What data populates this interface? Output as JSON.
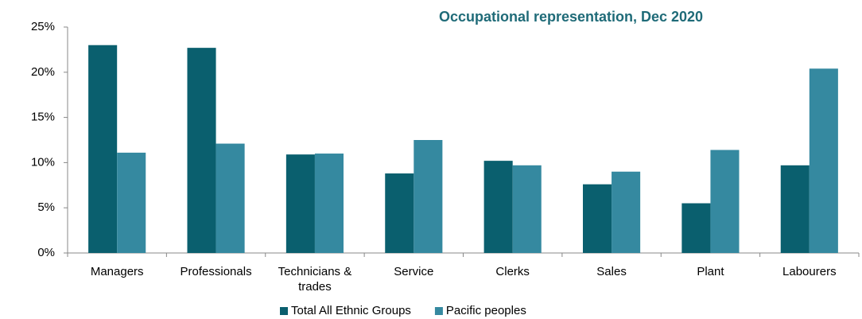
{
  "chart_data": {
    "type": "bar",
    "title": "Occupational representation, Dec 2020",
    "categories": [
      "Managers",
      "Professionals",
      "Technicians & trades",
      "Service",
      "Clerks",
      "Sales",
      "Plant",
      "Labourers"
    ],
    "series": [
      {
        "name": "Total All Ethnic Groups",
        "color": "#0a5f6e",
        "values": [
          23.0,
          22.7,
          10.9,
          8.8,
          10.2,
          7.6,
          5.5,
          9.7
        ]
      },
      {
        "name": "Pacific peoples",
        "color": "#3589a0",
        "values": [
          11.1,
          12.1,
          11.0,
          12.5,
          9.7,
          9.0,
          11.4,
          20.4
        ]
      }
    ],
    "ylim": [
      0,
      25
    ],
    "yticks": [
      {
        "value": 0,
        "label": "0%"
      },
      {
        "value": 5,
        "label": "5%"
      },
      {
        "value": 10,
        "label": "10%"
      },
      {
        "value": 15,
        "label": "15%"
      },
      {
        "value": 20,
        "label": "20%"
      },
      {
        "value": 25,
        "label": "25%"
      }
    ],
    "grid": false,
    "legend": "bottom"
  }
}
